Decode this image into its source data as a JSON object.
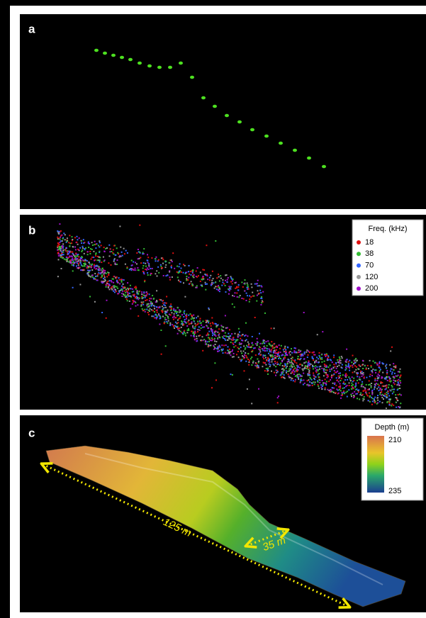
{
  "panels": [
    {
      "label": "a"
    },
    {
      "label": "b",
      "legend": {
        "title": "Freq. (kHz)",
        "items": [
          {
            "name": "18",
            "color": "#e01010"
          },
          {
            "name": "38",
            "color": "#33bb33"
          },
          {
            "name": "70",
            "color": "#3366ff"
          },
          {
            "name": "120",
            "color": "#999999"
          },
          {
            "name": "200",
            "color": "#a010c8"
          }
        ]
      }
    },
    {
      "label": "c",
      "colorbar": {
        "title": "Depth (m)",
        "top": "210",
        "bottom": "235"
      },
      "annotations": [
        "125 m",
        "35 m"
      ]
    }
  ]
}
